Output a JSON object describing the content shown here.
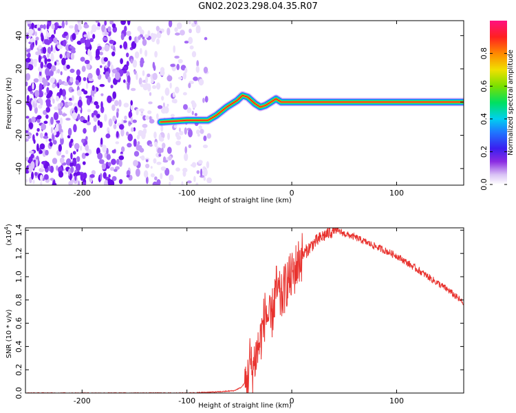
{
  "title": "GN02.2023.298.04.35.R07",
  "chart_data": [
    {
      "type": "heatmap",
      "xlabel": "Height of straight line (km)",
      "ylabel": "Frequency (Hz)",
      "xlim": [
        -254,
        164
      ],
      "ylim": [
        -50,
        49
      ],
      "xticks": [
        -200,
        -100,
        0,
        100
      ],
      "yticks": [
        -40,
        -20,
        0,
        20,
        40
      ],
      "xtick_labels": [
        "-200",
        "-100",
        "0",
        "100"
      ],
      "ytick_labels": [
        "-40",
        "-20",
        "0",
        "20",
        "40"
      ],
      "grid": false,
      "colorbar": {
        "label": "Normalized spectral amplitude",
        "range": [
          0,
          1
        ],
        "ticks": [
          0.0,
          0.2,
          0.4,
          0.6,
          0.8
        ],
        "tick_labels": [
          "0.0",
          "0.2",
          "0.4",
          "0.6",
          "0.8"
        ]
      },
      "noise_region": {
        "x_from": -254,
        "x_to": -78
      },
      "ridge": [
        {
          "x": -125,
          "y": -12
        },
        {
          "x": -100,
          "y": -11
        },
        {
          "x": -90,
          "y": -11
        },
        {
          "x": -80,
          "y": -11
        },
        {
          "x": -72,
          "y": -8
        },
        {
          "x": -62,
          "y": -3
        },
        {
          "x": -52,
          "y": 1
        },
        {
          "x": -47,
          "y": 4
        },
        {
          "x": -42,
          "y": 3
        },
        {
          "x": -35,
          "y": -1
        },
        {
          "x": -30,
          "y": -3
        },
        {
          "x": -25,
          "y": -2
        },
        {
          "x": -20,
          "y": 0
        },
        {
          "x": -15,
          "y": 2
        },
        {
          "x": -10,
          "y": 0
        },
        {
          "x": 164,
          "y": 0
        }
      ]
    },
    {
      "type": "line",
      "xlabel": "Height of straight line (km)",
      "ylabel": "SNR (10 * v/v)",
      "y_multiplier": "(x10",
      "y_multiplier_exp": "4",
      "y_multiplier_close": ")",
      "xlim": [
        -254,
        164
      ],
      "ylim": [
        0,
        1.42
      ],
      "xticks": [
        -200,
        -100,
        0,
        100
      ],
      "yticks": [
        0.0,
        0.2,
        0.4,
        0.6,
        0.8,
        1.0,
        1.2,
        1.4
      ],
      "xtick_labels": [
        "-200",
        "-100",
        "0",
        "100"
      ],
      "ytick_labels": [
        "0.0",
        "0.2",
        "0.4",
        "0.6",
        "0.8",
        "1.0",
        "1.2",
        "1.4"
      ],
      "grid": false,
      "series": [
        {
          "color": "#e8322e",
          "x": [
            -254,
            -200,
            -150,
            -100,
            -70,
            -55,
            -48,
            -42,
            -40,
            -38,
            -35,
            -30,
            -25,
            -20,
            -15,
            -10,
            -5,
            0,
            5,
            10,
            20,
            30,
            40,
            45,
            50,
            60,
            70,
            80,
            100,
            120,
            140,
            150,
            164
          ],
          "values": [
            0.0,
            0.0,
            0.0,
            0.0,
            0.01,
            0.02,
            0.05,
            0.12,
            0.3,
            0.18,
            0.3,
            0.45,
            0.7,
            0.6,
            0.9,
            0.8,
            0.95,
            1.0,
            1.1,
            1.18,
            1.28,
            1.35,
            1.4,
            1.39,
            1.37,
            1.34,
            1.3,
            1.26,
            1.18,
            1.06,
            0.94,
            0.88,
            0.77
          ]
        }
      ]
    }
  ]
}
